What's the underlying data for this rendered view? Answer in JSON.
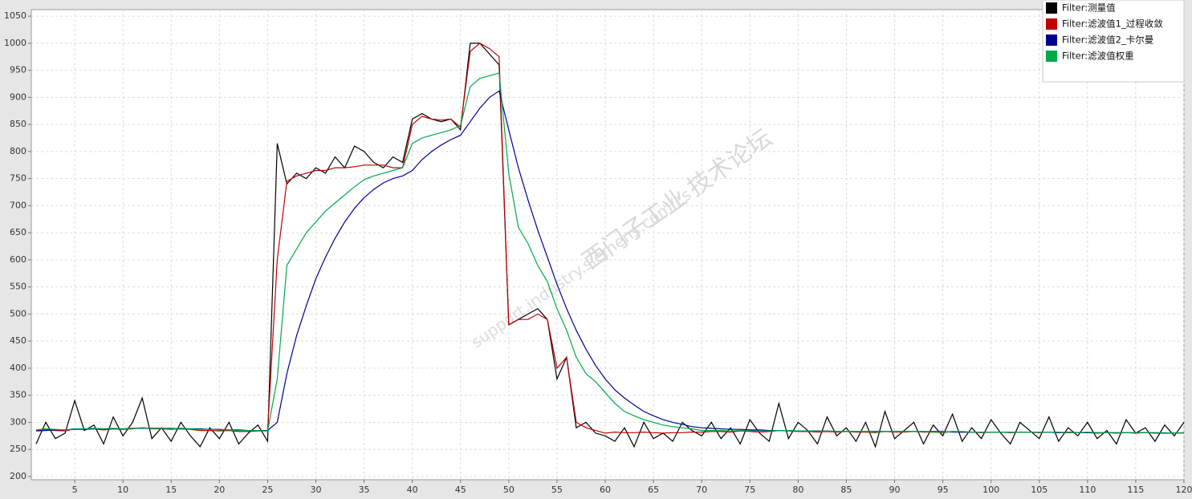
{
  "chart_data": {
    "type": "line",
    "watermark": [
      "西门子工业 技术论坛",
      "support.industry.siemens.com/cs"
    ],
    "legend": "top-right",
    "grid": true,
    "xlim": [
      0.5,
      120
    ],
    "xticks": [
      5,
      10,
      15,
      20,
      25,
      30,
      35,
      40,
      45,
      50,
      55,
      60,
      65,
      70,
      75,
      80,
      85,
      90,
      95,
      100,
      105,
      110,
      115,
      120
    ],
    "ylim": [
      194,
      1062
    ],
    "yticks": [
      200,
      250,
      300,
      350,
      400,
      450,
      500,
      550,
      600,
      650,
      700,
      750,
      800,
      850,
      900,
      950,
      1000,
      1050
    ],
    "x": [
      1,
      2,
      3,
      4,
      5,
      6,
      7,
      8,
      9,
      10,
      11,
      12,
      13,
      14,
      15,
      16,
      17,
      18,
      19,
      20,
      21,
      22,
      23,
      24,
      25,
      26,
      27,
      28,
      29,
      30,
      31,
      32,
      33,
      34,
      35,
      36,
      37,
      38,
      39,
      40,
      41,
      42,
      43,
      44,
      45,
      46,
      47,
      48,
      49,
      50,
      51,
      52,
      53,
      54,
      55,
      56,
      57,
      58,
      59,
      60,
      61,
      62,
      63,
      64,
      65,
      66,
      67,
      68,
      69,
      70,
      71,
      72,
      73,
      74,
      75,
      76,
      77,
      78,
      79,
      80,
      81,
      82,
      83,
      84,
      85,
      86,
      87,
      88,
      89,
      90,
      91,
      92,
      93,
      94,
      95,
      96,
      97,
      98,
      99,
      100,
      101,
      102,
      103,
      104,
      105,
      106,
      107,
      108,
      109,
      110,
      111,
      112,
      113,
      114,
      115,
      116,
      117,
      118,
      119,
      120
    ],
    "series": [
      {
        "name": "Filter:测量值",
        "color": "#000000",
        "values": [
          260,
          300,
          270,
          280,
          340,
          285,
          295,
          260,
          310,
          275,
          300,
          345,
          270,
          290,
          265,
          300,
          275,
          255,
          290,
          270,
          300,
          260,
          280,
          295,
          265,
          815,
          740,
          760,
          750,
          770,
          760,
          790,
          770,
          810,
          800,
          780,
          770,
          790,
          780,
          860,
          870,
          860,
          855,
          860,
          840,
          1000,
          1000,
          980,
          960,
          480,
          490,
          500,
          510,
          490,
          380,
          420,
          290,
          300,
          280,
          275,
          265,
          290,
          255,
          300,
          270,
          280,
          265,
          300,
          285,
          275,
          300,
          270,
          290,
          260,
          305,
          280,
          265,
          335,
          270,
          300,
          285,
          260,
          310,
          275,
          290,
          265,
          300,
          255,
          320,
          270,
          285,
          300,
          260,
          295,
          275,
          315,
          265,
          290,
          270,
          305,
          280,
          260,
          300,
          285,
          270,
          310,
          265,
          290,
          275,
          300,
          270,
          285,
          260,
          305,
          280,
          290,
          265,
          295,
          275,
          300
        ]
      },
      {
        "name": "Filter:滤波值1_过程收敛",
        "color": "#c00000",
        "values": [
          285,
          287,
          285,
          284,
          288,
          287,
          288,
          286,
          288,
          287,
          288,
          290,
          288,
          288,
          287,
          288,
          287,
          285,
          285,
          284,
          285,
          283,
          283,
          284,
          284,
          600,
          745,
          755,
          760,
          765,
          765,
          770,
          770,
          772,
          775,
          775,
          775,
          770,
          770,
          850,
          865,
          860,
          858,
          860,
          845,
          985,
          1000,
          990,
          975,
          480,
          490,
          490,
          500,
          490,
          400,
          420,
          300,
          290,
          285,
          280,
          282,
          281,
          281,
          282,
          281,
          280,
          281,
          281,
          282,
          282,
          283,
          283,
          282,
          284,
          283,
          282,
          283,
          285,
          284,
          283,
          283,
          282,
          283,
          282,
          283,
          282,
          282,
          281,
          283,
          282,
          282,
          283,
          282,
          282,
          281,
          283,
          282,
          282,
          281,
          282,
          282,
          281,
          282,
          282,
          281,
          282,
          281,
          282,
          281,
          281,
          280,
          281,
          280,
          281,
          280,
          281,
          280,
          280,
          280,
          281
        ]
      },
      {
        "name": "Filter:滤波值2_卡尔曼",
        "color": "#000090",
        "values": [
          284,
          285,
          286,
          286,
          287,
          287,
          288,
          288,
          288,
          288,
          289,
          289,
          289,
          289,
          289,
          288,
          288,
          288,
          287,
          287,
          286,
          286,
          285,
          285,
          285,
          300,
          390,
          460,
          515,
          565,
          605,
          640,
          670,
          695,
          715,
          730,
          742,
          750,
          755,
          765,
          785,
          800,
          812,
          822,
          830,
          855,
          880,
          900,
          912,
          840,
          770,
          710,
          655,
          605,
          555,
          510,
          470,
          435,
          405,
          380,
          360,
          345,
          332,
          320,
          312,
          305,
          300,
          296,
          292,
          290,
          289,
          288,
          287,
          287,
          286,
          286,
          285,
          285,
          285,
          284,
          284,
          284,
          284,
          283,
          283,
          283,
          283,
          283,
          283,
          283,
          283,
          283,
          283,
          283,
          283,
          282,
          282,
          282,
          282,
          282,
          282,
          282,
          282,
          282,
          282,
          282,
          281,
          281,
          281,
          281,
          281,
          281,
          281,
          281,
          281,
          281,
          281,
          280,
          280,
          280
        ]
      },
      {
        "name": "Filter:滤波值权重",
        "color": "#00a84a",
        "values": [
          286,
          288,
          287,
          286,
          288,
          288,
          289,
          288,
          289,
          288,
          289,
          290,
          289,
          289,
          288,
          289,
          288,
          287,
          287,
          286,
          286,
          285,
          285,
          285,
          284,
          380,
          590,
          620,
          650,
          670,
          690,
          705,
          720,
          735,
          748,
          755,
          760,
          765,
          770,
          815,
          825,
          830,
          835,
          840,
          848,
          920,
          935,
          940,
          945,
          760,
          660,
          630,
          590,
          560,
          510,
          470,
          420,
          390,
          375,
          355,
          335,
          320,
          312,
          305,
          300,
          295,
          292,
          290,
          288,
          285,
          285,
          285,
          284,
          285,
          284,
          284,
          284,
          285,
          285,
          284,
          284,
          283,
          284,
          283,
          283,
          283,
          283,
          282,
          283,
          283,
          283,
          283,
          283,
          282,
          282,
          283,
          283,
          282,
          282,
          282,
          282,
          282,
          282,
          282,
          282,
          282,
          282,
          281,
          281,
          282,
          281,
          281,
          281,
          281,
          281,
          281,
          281,
          281,
          280,
          280
        ]
      }
    ]
  }
}
